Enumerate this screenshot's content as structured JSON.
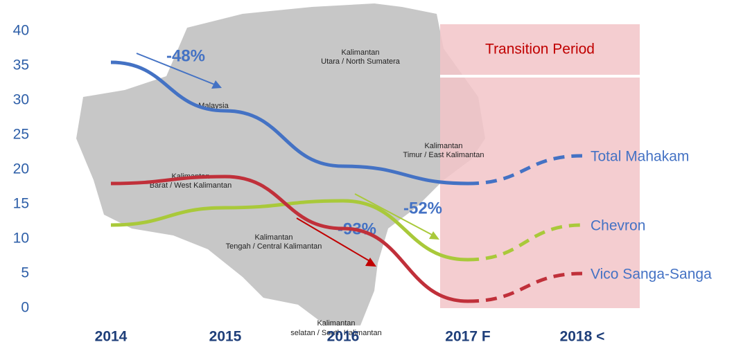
{
  "chart_data": {
    "type": "line",
    "categories": [
      "2014",
      "2015",
      "2016",
      "2017 F",
      "2018 <"
    ],
    "series": [
      {
        "name": "Total Mahakam",
        "color": "#4472c4",
        "values": [
          35.5,
          28.5,
          20.5,
          18,
          22
        ]
      },
      {
        "name": "Chevron",
        "color": "#a9c93a",
        "values": [
          12,
          14.5,
          15.5,
          7,
          12
        ]
      },
      {
        "name": "Vico Sanga-Sanga",
        "color": "#c0303a",
        "values": [
          18,
          19,
          11.5,
          1,
          5
        ]
      }
    ],
    "ylim": [
      0,
      40
    ],
    "yticks": [
      0,
      5,
      10,
      15,
      20,
      25,
      30,
      35,
      40
    ],
    "grid": false,
    "annotations": [
      "-48%",
      "-52%",
      "-93%",
      "Transition Period"
    ],
    "map_labels": [
      "Kalimantan",
      "Utara / North Sumatera",
      "Malaysia",
      "Kalimantan",
      "Timur / East Kalimantan",
      "Kalimantan",
      "Barat / West Kalimantan",
      "Kalimantan",
      "Tengah / Central Kalimantan",
      "Kalimantan",
      "selatan / South Kalimantan"
    ]
  }
}
